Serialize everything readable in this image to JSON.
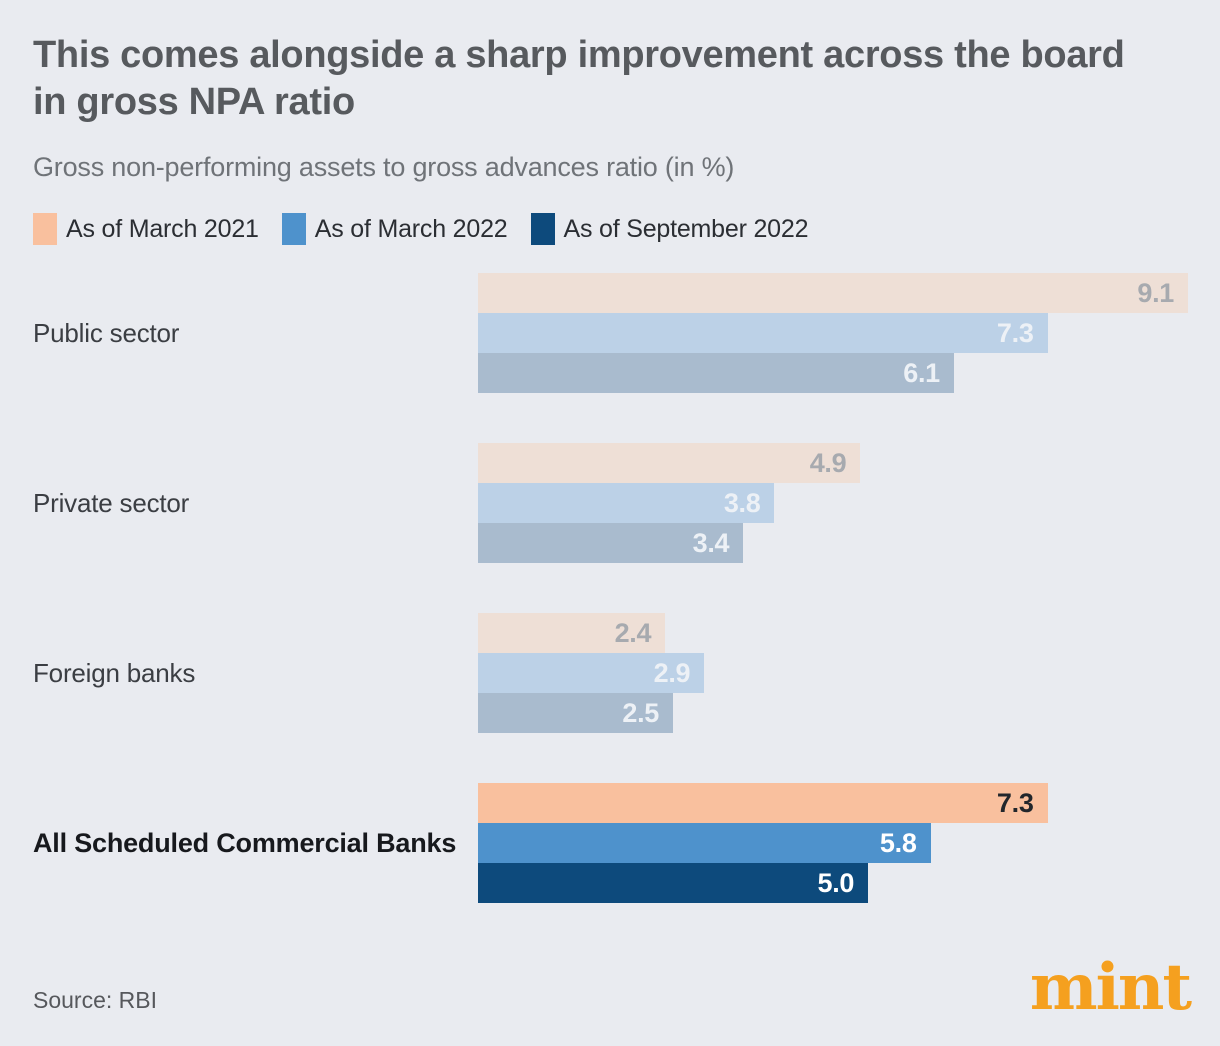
{
  "header": {
    "title": "This comes alongside a sharp improvement across the board in gross NPA ratio",
    "subtitle": "Gross non-performing assets to gross advances ratio (in %)"
  },
  "legend": {
    "items": [
      {
        "label": "As of March 2021",
        "color": "#f9c09e"
      },
      {
        "label": "As of March 2022",
        "color": "#4e92cc"
      },
      {
        "label": "As of September 2022",
        "color": "#0d4a7c"
      }
    ]
  },
  "chart_data": {
    "type": "bar",
    "orientation": "horizontal",
    "title": "This comes alongside a sharp improvement across the board in gross NPA ratio",
    "subtitle": "Gross non-performing assets to gross advances ratio (in %)",
    "unit": "%",
    "xlim": [
      0,
      9.1
    ],
    "grid": false,
    "legend_position": "top",
    "categories": [
      "Public sector",
      "Private sector",
      "Foreign banks",
      "All Scheduled Commercial Banks"
    ],
    "series": [
      {
        "name": "As of March 2021",
        "values": [
          9.1,
          4.9,
          2.4,
          7.3
        ],
        "labels": [
          "9.1",
          "4.9",
          "2.4",
          "7.3"
        ]
      },
      {
        "name": "As of March 2022",
        "values": [
          7.3,
          3.8,
          2.9,
          5.8
        ],
        "labels": [
          "7.3",
          "3.8",
          "2.9",
          "5.8"
        ]
      },
      {
        "name": "As of September 2022",
        "values": [
          6.1,
          3.4,
          2.5,
          5.0
        ],
        "labels": [
          "6.1",
          "3.4",
          "2.5",
          "5.0"
        ]
      }
    ],
    "highlight_category": "All Scheduled Commercial Banks"
  },
  "style": {
    "background": "#e9ebf0",
    "series_colors": [
      "#f9c09e",
      "#4e92cc",
      "#0d4a7c"
    ],
    "muted_series_colors": [
      "#eedfd6",
      "#bcd1e7",
      "#a9bbce"
    ],
    "muted_value_colors": [
      "#a7aaaf",
      "#edf1f6",
      "#edf1f6"
    ],
    "highlight_value_colors": [
      "#22262b",
      "#ffffff",
      "#ffffff"
    ]
  },
  "footer": {
    "source": "Source: RBI",
    "brand": "mint",
    "brand_color": "#f5a01f"
  }
}
